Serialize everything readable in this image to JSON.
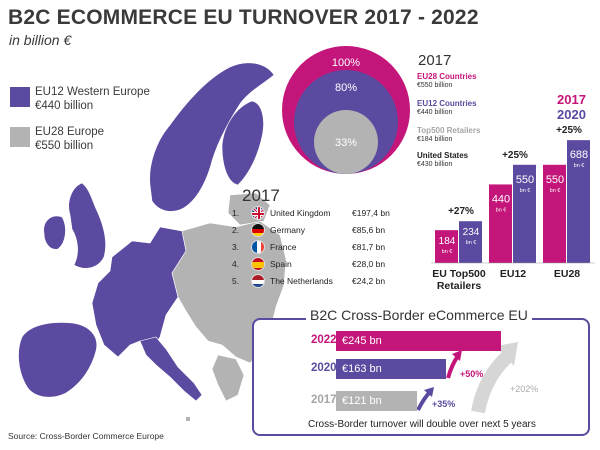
{
  "header": {
    "title": "B2C ECOMMERCE EU TURNOVER 2017 - 2022",
    "subtitle": "in billion €"
  },
  "map_legend": [
    {
      "name": "EU12 Western Europe",
      "value": "€440 billion",
      "color": "#5b4aa0"
    },
    {
      "name": "EU28 Europe",
      "value": "€550 billion",
      "color": "#b3b3b3"
    }
  ],
  "source": "Source: Cross-Border Commerce Europe",
  "ranking": {
    "year": "2017",
    "rows": [
      {
        "num": "1.",
        "country": "United Kingdom",
        "value": "€197,4 bn",
        "flag": "uk-flag"
      },
      {
        "num": "2.",
        "country": "Germany",
        "value": "€85,6 bn",
        "flag": "germany-flag"
      },
      {
        "num": "3.",
        "country": "France",
        "value": "€81,7 bn",
        "flag": "france-flag"
      },
      {
        "num": "4.",
        "country": "Spain",
        "value": "€28,0 bn",
        "flag": "spain-flag"
      },
      {
        "num": "5.",
        "country": "The Netherlands",
        "value": "€24,2 bn",
        "flag": "netherlands-flag"
      }
    ]
  },
  "circles": {
    "year": "2017",
    "labels": [
      "100%",
      "80%",
      "33%"
    ],
    "legend": [
      {
        "name": "EU28 Countries",
        "value": "€550 billion",
        "color": "#c4157a"
      },
      {
        "name": "EU12 Countries",
        "value": "€440 billion",
        "color": "#5b4aa0"
      },
      {
        "name": "Top500 Retailers",
        "value": "€184 billion",
        "color": "#b3b3b3"
      },
      {
        "name": "United States",
        "value": "€430 billion",
        "color": "#222222"
      }
    ]
  },
  "chart_data": [
    {
      "type": "bar",
      "title": "",
      "categories": [
        "EU Top500 Retailers",
        "EU12",
        "EU28"
      ],
      "series": [
        {
          "name": "2017",
          "values": [
            184,
            440,
            550
          ],
          "color": "#c4157a"
        },
        {
          "name": "2020",
          "values": [
            234,
            550,
            688
          ],
          "color": "#5b4aa0"
        }
      ],
      "value_labels": [
        [
          "184",
          "234"
        ],
        [
          "440",
          "550"
        ],
        [
          "550",
          "688"
        ]
      ],
      "unit_label": "bn €",
      "growth_labels": [
        "+27%",
        "+25%",
        "+25%"
      ],
      "legend": [
        "2017",
        "2020"
      ],
      "ylim": [
        0,
        700
      ]
    },
    {
      "type": "bar",
      "title": "B2C Cross-Border eCommerce EU",
      "categories": [
        "2022",
        "2020",
        "2017"
      ],
      "values": [
        245,
        163,
        121
      ],
      "value_labels": [
        "€245 bn",
        "€163 bn",
        "€121 bn"
      ],
      "colors": [
        "#c4157a",
        "#5b4aa0",
        "#b3b3b3"
      ],
      "growth_labels": [
        "+50%",
        "+35%",
        "+202%"
      ],
      "footnote": "Cross-Border turnover will double over next 5 years"
    }
  ]
}
